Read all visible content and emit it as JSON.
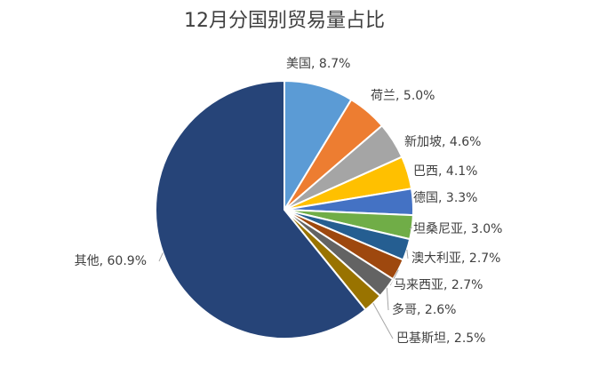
{
  "chart_data": {
    "type": "pie",
    "title": "12月分国别贸易量占比",
    "categories": [
      "美国",
      "荷兰",
      "新加坡",
      "巴西",
      "德国",
      "坦桑尼亚",
      "澳大利亚",
      "马来西亚",
      "多哥",
      "巴基斯坦",
      "其他"
    ],
    "values": [
      8.7,
      5.0,
      4.6,
      4.1,
      3.3,
      3.0,
      2.7,
      2.7,
      2.6,
      2.5,
      60.9
    ],
    "value_labels": [
      "8.7%",
      "5.0%",
      "4.6%",
      "4.1%",
      "3.3%",
      "3.0%",
      "2.7%",
      "2.7%",
      "2.6%",
      "2.5%",
      "60.9%"
    ],
    "label_separator": ", ",
    "colors": [
      "#5b9bd5",
      "#ed7d31",
      "#a5a5a5",
      "#ffc000",
      "#4472c4",
      "#70ad47",
      "#255e91",
      "#9e480e",
      "#636363",
      "#997300",
      "#264478"
    ]
  }
}
